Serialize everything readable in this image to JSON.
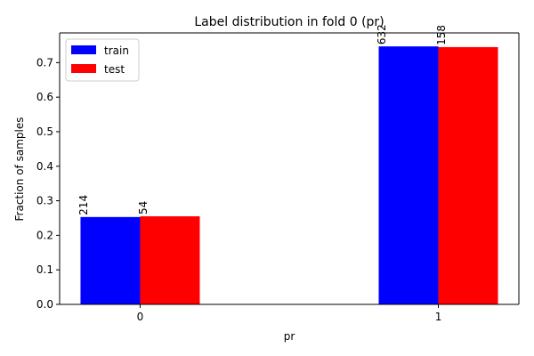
{
  "chart_data": {
    "type": "bar",
    "title": "Label distribution in fold 0 (pr)",
    "xlabel": "pr",
    "ylabel": "Fraction of samples",
    "categories": [
      "0",
      "1"
    ],
    "series": [
      {
        "name": "train",
        "color": "#0000ff",
        "values": [
          0.253,
          0.747
        ],
        "labels": [
          "214",
          "632"
        ]
      },
      {
        "name": "test",
        "color": "#ff0000",
        "values": [
          0.255,
          0.745
        ],
        "labels": [
          "54",
          "158"
        ]
      }
    ],
    "ylim": [
      0,
      0.786
    ],
    "yticks": [
      "0.0",
      "0.1",
      "0.2",
      "0.3",
      "0.4",
      "0.5",
      "0.6",
      "0.7"
    ],
    "grid": false,
    "legend_position": "top-left"
  }
}
